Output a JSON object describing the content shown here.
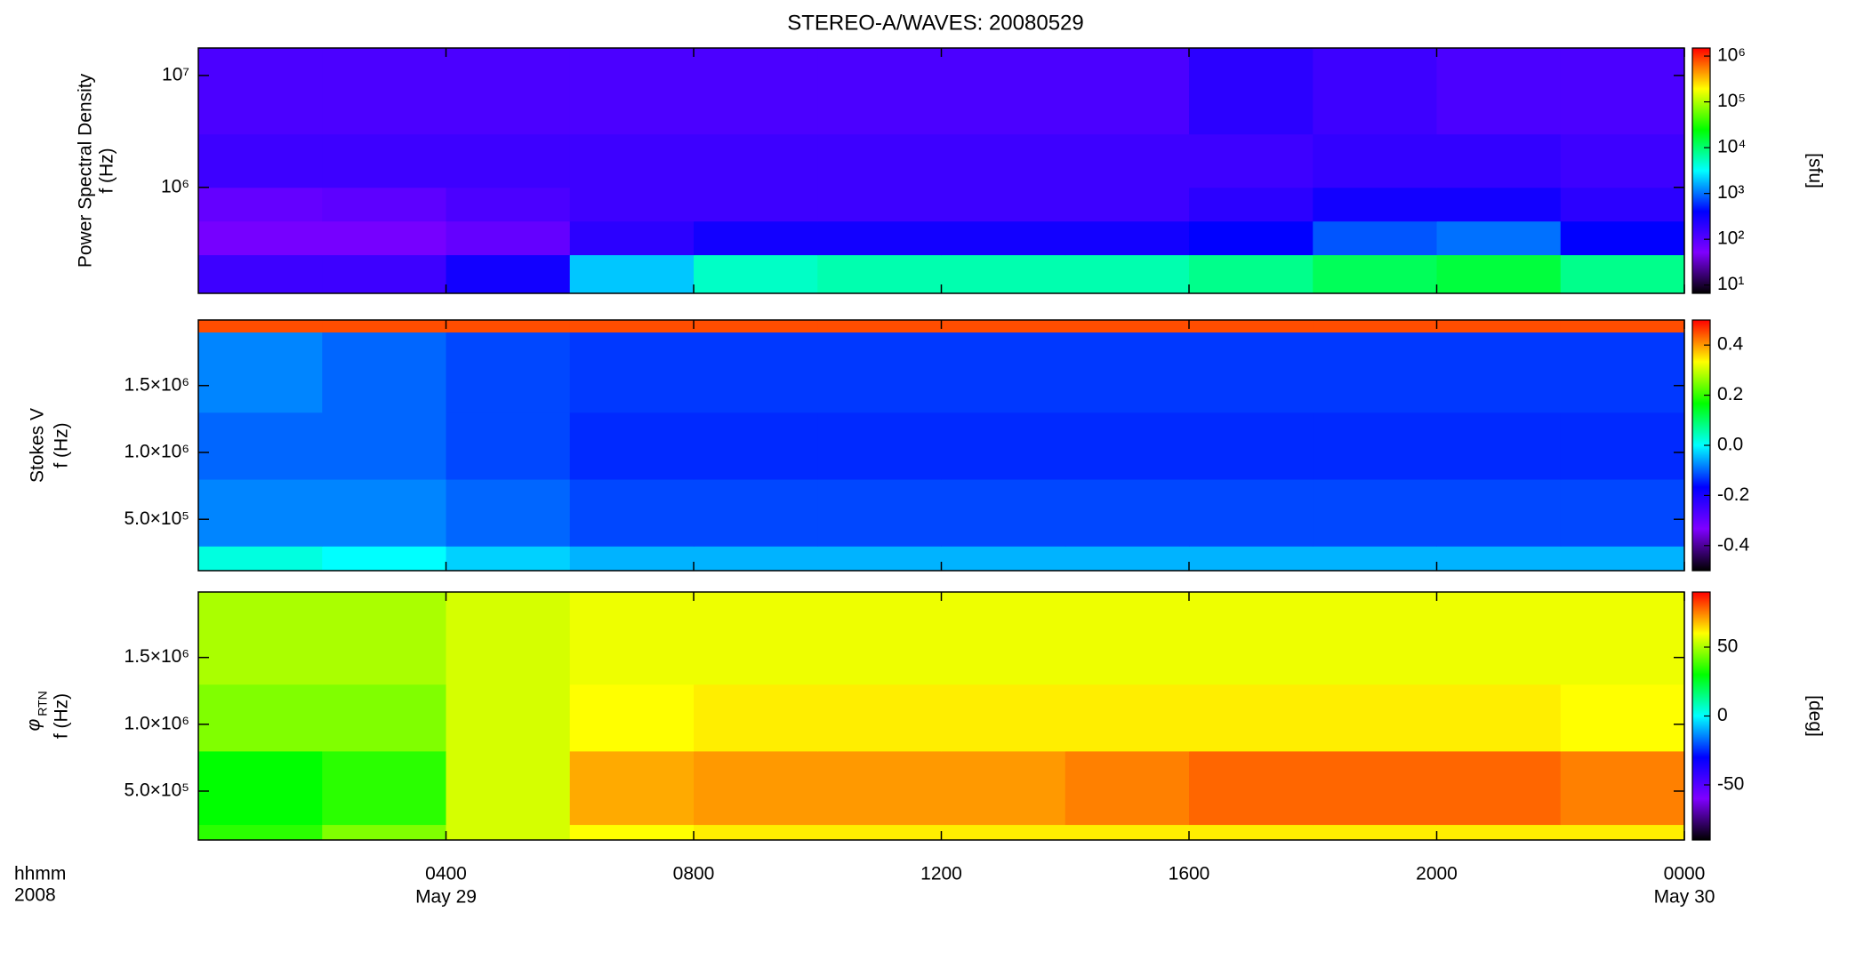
{
  "chart_data": [
    {
      "type": "heatmap",
      "title": "STEREO-A/WAVES: 20080529",
      "ylabel": "Power Spectral Density",
      "ylabel2": "f (Hz)",
      "colormap": [
        "#000000",
        "#7f00ff",
        "#0000ff",
        "#00ffff",
        "#00ff00",
        "#ffff00",
        "#ff0000"
      ],
      "xlim": [
        0,
        24
      ],
      "yscale": "log",
      "ylim": [
        113000,
        17600000
      ],
      "yticks": [
        {
          "value": 1000000,
          "label": "10⁶"
        },
        {
          "value": 10000000,
          "label": "10⁷"
        }
      ],
      "cscale": "log",
      "clim": [
        6.6,
        1500000
      ],
      "clabel": "[sfu]",
      "cticks": [
        {
          "value": 10,
          "label": "10¹"
        },
        {
          "value": 100,
          "label": "10²"
        },
        {
          "value": 1000,
          "label": "10³"
        },
        {
          "value": 10000,
          "label": "10⁴"
        },
        {
          "value": 100000,
          "label": "10⁵"
        },
        {
          "value": 1000000,
          "label": "10⁶"
        }
      ],
      "time_edges": [
        0,
        2,
        4,
        6,
        8,
        10,
        12,
        14,
        16,
        18,
        20,
        22,
        24
      ],
      "freq_edges": [
        113000,
        250000,
        500000,
        1000000,
        3000000,
        17600000
      ],
      "z": [
        [
          150,
          150,
          300,
          2000,
          5000,
          6000,
          6000,
          6000,
          8000,
          12000,
          15000,
          8000
        ],
        [
          60,
          60,
          80,
          200,
          300,
          300,
          300,
          300,
          400,
          800,
          1000,
          400
        ],
        [
          80,
          90,
          120,
          150,
          150,
          150,
          150,
          150,
          200,
          300,
          300,
          200
        ],
        [
          150,
          150,
          150,
          150,
          150,
          150,
          150,
          150,
          150,
          180,
          180,
          150
        ],
        [
          120,
          120,
          120,
          120,
          120,
          120,
          120,
          120,
          200,
          150,
          120,
          120
        ]
      ]
    },
    {
      "type": "heatmap",
      "ylabel": "Stokes V",
      "ylabel2": "f (Hz)",
      "xlim": [
        0,
        24
      ],
      "yscale": "linear",
      "ylim": [
        116000,
        1990000
      ],
      "yticks": [
        {
          "value": 500000,
          "label": "5.0×10⁵"
        },
        {
          "value": 1000000,
          "label": "1.0×10⁶"
        },
        {
          "value": 1500000,
          "label": "1.5×10⁶"
        }
      ],
      "cscale": "linear",
      "clim": [
        -0.5,
        0.5
      ],
      "cticks": [
        -0.4,
        -0.2,
        {
          "value": 0,
          "label": "0.0"
        },
        0.2,
        0.4
      ],
      "time_edges": [
        0,
        2,
        4,
        6,
        8,
        10,
        12,
        14,
        16,
        18,
        20,
        22,
        24
      ],
      "freq_edges": [
        116000,
        300000,
        800000,
        1300000,
        1900000,
        1990000
      ],
      "z": [
        [
          0.02,
          0,
          -0.03,
          -0.05,
          -0.05,
          -0.05,
          -0.05,
          -0.05,
          -0.05,
          -0.05,
          -0.05,
          -0.05
        ],
        [
          -0.08,
          -0.08,
          -0.1,
          -0.12,
          -0.12,
          -0.12,
          -0.12,
          -0.12,
          -0.12,
          -0.12,
          -0.12,
          -0.12
        ],
        [
          -0.1,
          -0.1,
          -0.12,
          -0.14,
          -0.14,
          -0.14,
          -0.14,
          -0.14,
          -0.14,
          -0.14,
          -0.14,
          -0.14
        ],
        [
          -0.08,
          -0.1,
          -0.12,
          -0.13,
          -0.13,
          -0.13,
          -0.13,
          -0.13,
          -0.13,
          -0.13,
          -0.13,
          -0.13
        ],
        [
          0.45,
          0.45,
          0.45,
          0.45,
          0.45,
          0.45,
          0.45,
          0.45,
          0.45,
          0.45,
          0.45,
          0.45
        ]
      ]
    },
    {
      "type": "heatmap",
      "ylabel": "φ",
      "ylabel_sub": "RTN",
      "ylabel2": "f (Hz)",
      "xlim": [
        0,
        24
      ],
      "yscale": "linear",
      "ylim": [
        134000,
        1990000
      ],
      "yticks": [
        {
          "value": 500000,
          "label": "5.0×10⁵"
        },
        {
          "value": 1000000,
          "label": "1.0×10⁶"
        },
        {
          "value": 1500000,
          "label": "1.5×10⁶"
        }
      ],
      "cscale": "linear",
      "clim": [
        -90,
        90
      ],
      "clabel": "[deg]",
      "cticks": [
        -50,
        0,
        50
      ],
      "time_edges": [
        0,
        2,
        4,
        6,
        8,
        10,
        12,
        14,
        16,
        18,
        20,
        22,
        24
      ],
      "freq_edges": [
        134000,
        250000,
        800000,
        1300000,
        1990000
      ],
      "z": [
        [
          35,
          45,
          55,
          60,
          62,
          62,
          62,
          62,
          62,
          62,
          62,
          62
        ],
        [
          30,
          35,
          55,
          70,
          72,
          72,
          72,
          75,
          78,
          78,
          78,
          75
        ],
        [
          45,
          45,
          55,
          60,
          62,
          62,
          62,
          62,
          62,
          62,
          62,
          60
        ],
        [
          50,
          50,
          55,
          58,
          58,
          58,
          58,
          58,
          58,
          58,
          58,
          58
        ]
      ],
      "xlabel": "hhmm",
      "xlabel2": "2008",
      "xticks": [
        {
          "value": 4,
          "label": "0400"
        },
        {
          "value": 8,
          "label": "0800"
        },
        {
          "value": 12,
          "label": "1200"
        },
        {
          "value": 16,
          "label": "1600"
        },
        {
          "value": 20,
          "label": "2000"
        },
        {
          "value": 24,
          "label": "0000"
        }
      ],
      "date_labels": [
        {
          "value": 4,
          "label": "May 29"
        },
        {
          "value": 24,
          "label": "May 30"
        }
      ]
    }
  ]
}
